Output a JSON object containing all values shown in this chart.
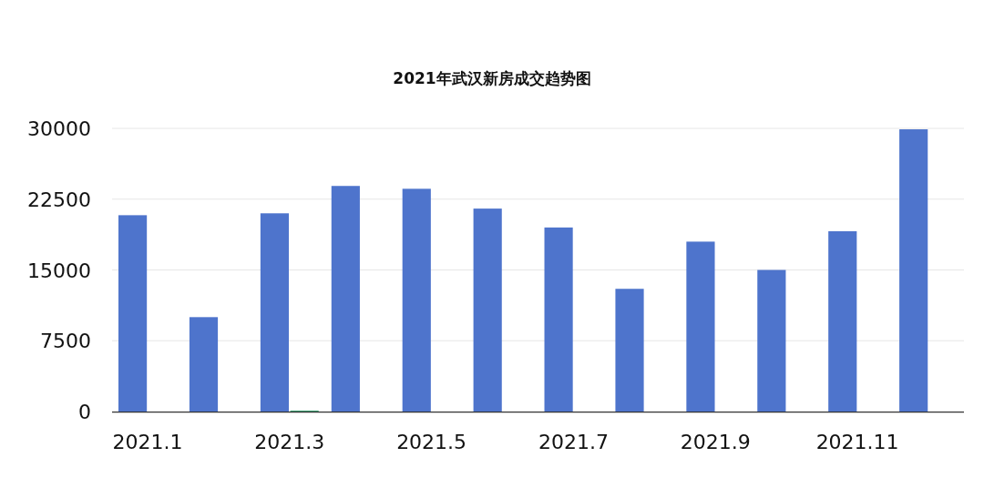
{
  "chart_data": {
    "type": "bar",
    "title": "2021年武汉新房成交趋势图",
    "categories": [
      "2021.1",
      null,
      "2021.3",
      null,
      "2021.5",
      null,
      "2021.7",
      null,
      "2021.9",
      null,
      "2021.11",
      null
    ],
    "series": [
      {
        "color": "#4e74cc",
        "values": [
          20800,
          10000,
          21000,
          23900,
          23600,
          21500,
          19500,
          13000,
          18000,
          15000,
          19100,
          29900
        ]
      },
      {
        "color": "#3ba272",
        "values": [
          null,
          null,
          100,
          null,
          null,
          null,
          null,
          null,
          null,
          null,
          null,
          null
        ]
      }
    ],
    "ylim": [
      0,
      30000
    ],
    "yticks": [
      0,
      7500,
      15000,
      22500,
      30000
    ],
    "grid": "y"
  }
}
